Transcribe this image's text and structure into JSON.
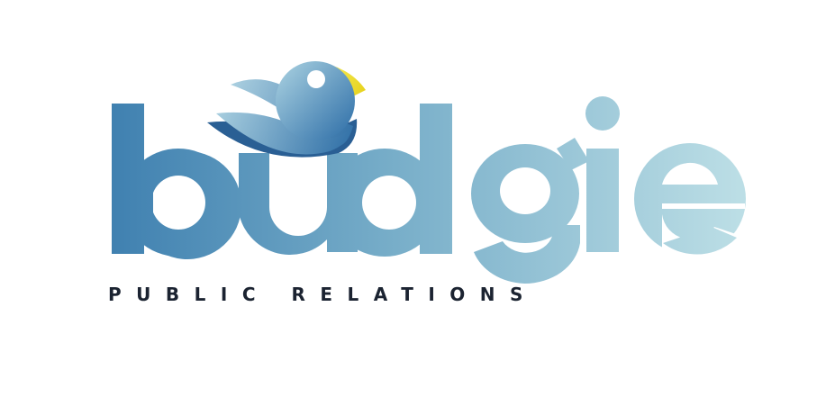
{
  "logo": {
    "wordmark": "budgie",
    "tagline": "PUBLIC RELATIONS",
    "bird_icon": "budgie-bird-icon",
    "colors": {
      "dark_blue": "#3f80b0",
      "mid_blue": "#78aec9",
      "light_blue": "#bddfe6",
      "beak_yellow": "#f2e63a",
      "tagline_text": "#1b2331",
      "background": "#ffffff"
    }
  }
}
